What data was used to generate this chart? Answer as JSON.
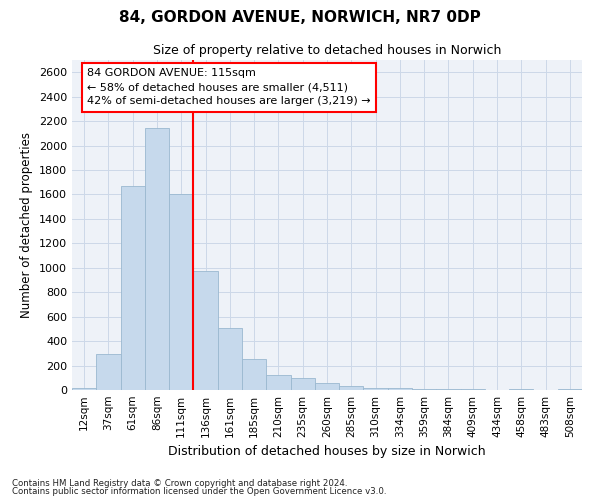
{
  "title1": "84, GORDON AVENUE, NORWICH, NR7 0DP",
  "title2": "Size of property relative to detached houses in Norwich",
  "xlabel": "Distribution of detached houses by size in Norwich",
  "ylabel": "Number of detached properties",
  "categories": [
    "12sqm",
    "37sqm",
    "61sqm",
    "86sqm",
    "111sqm",
    "136sqm",
    "161sqm",
    "185sqm",
    "210sqm",
    "235sqm",
    "260sqm",
    "285sqm",
    "310sqm",
    "334sqm",
    "359sqm",
    "384sqm",
    "409sqm",
    "434sqm",
    "458sqm",
    "483sqm",
    "508sqm"
  ],
  "values": [
    18,
    295,
    1670,
    2140,
    1600,
    970,
    505,
    255,
    120,
    100,
    55,
    35,
    20,
    20,
    12,
    12,
    5,
    3,
    10,
    3,
    12
  ],
  "bar_color": "#c6d9ec",
  "bar_edge_color": "#9ab8d0",
  "vline_color": "red",
  "vline_index": 4,
  "annotation_text": "84 GORDON AVENUE: 115sqm\n← 58% of detached houses are smaller (4,511)\n42% of semi-detached houses are larger (3,219) →",
  "annotation_box_facecolor": "white",
  "annotation_box_edgecolor": "red",
  "ylim": [
    0,
    2700
  ],
  "yticks": [
    0,
    200,
    400,
    600,
    800,
    1000,
    1200,
    1400,
    1600,
    1800,
    2000,
    2200,
    2400,
    2600
  ],
  "grid_color": "#ccd8e8",
  "bg_color": "#eef2f8",
  "footer1": "Contains HM Land Registry data © Crown copyright and database right 2024.",
  "footer2": "Contains public sector information licensed under the Open Government Licence v3.0."
}
